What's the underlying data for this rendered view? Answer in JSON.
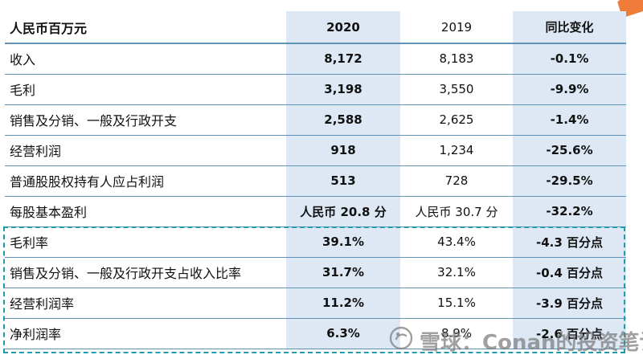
{
  "table": {
    "header": {
      "metric": "人民币百万元",
      "y2020": "2020",
      "y2019": "2019",
      "change": "同比变化"
    },
    "rows": [
      {
        "metric": "收入",
        "y2020": "8,172",
        "y2019": "8,183",
        "change": "-0.1%"
      },
      {
        "metric": "毛利",
        "y2020": "3,198",
        "y2019": "3,550",
        "change": "-9.9%"
      },
      {
        "metric": "销售及分销、一般及行政开支",
        "y2020": "2,588",
        "y2019": "2,625",
        "change": "-1.4%"
      },
      {
        "metric": "经营利润",
        "y2020": "918",
        "y2019": "1,234",
        "change": "-25.6%"
      },
      {
        "metric": "普通股股权持有人应占利润",
        "y2020": "513",
        "y2019": "728",
        "change": "-29.5%"
      },
      {
        "metric": "每股基本盈利",
        "y2020": "人民币 20.8 分",
        "y2019": "人民币 30.7 分",
        "change": "-32.2%"
      },
      {
        "metric": "毛利率",
        "y2020": "39.1%",
        "y2019": "43.4%",
        "change": "-4.3 百分点"
      },
      {
        "metric": "销售及分销、一般及行政开支占收入比率",
        "y2020": "31.7%",
        "y2019": "32.1%",
        "change": "-0.4 百分点"
      },
      {
        "metric": "经营利润率",
        "y2020": "11.2%",
        "y2019": "15.1%",
        "change": "-3.9 百分点"
      },
      {
        "metric": "净利润率",
        "y2020": "6.3%",
        "y2019": "8.9%",
        "change": "-2.6 百分点"
      }
    ]
  },
  "watermark": {
    "text": "雪球：Conan的投资笔记",
    "icon": "snowball-logo-icon"
  },
  "colors": {
    "header_rule": "#5f92b4",
    "shade": "#dde8f4",
    "highlight": "#1e9cac",
    "corner_accent": "#f07c3a"
  }
}
